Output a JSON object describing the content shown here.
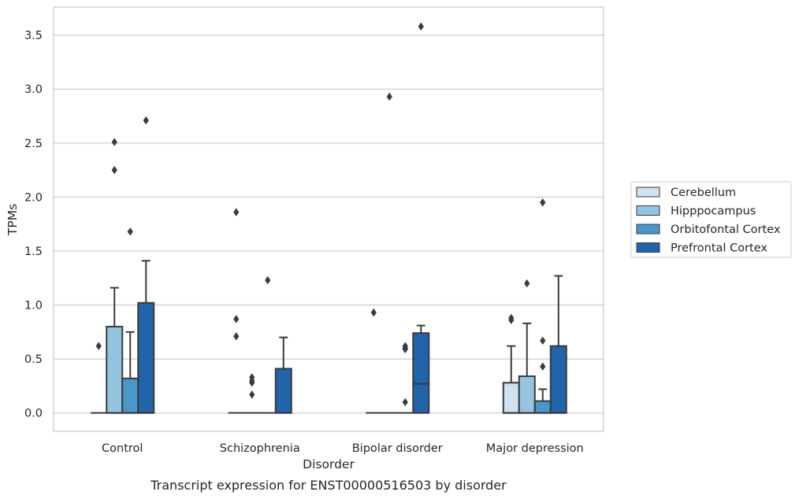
{
  "chart_data": {
    "type": "box",
    "caption": "Transcript expression for ENST00000516503 by disorder",
    "xlabel": "Disorder",
    "ylabel": "TPMs",
    "ylim": [
      -0.17,
      3.76
    ],
    "yticks": [
      "0.0",
      "0.5",
      "1.0",
      "1.5",
      "2.0",
      "2.5",
      "3.0",
      "3.5"
    ],
    "categories": [
      "Control",
      "Schizophrenia",
      "Bipolar disorder",
      "Major depression"
    ],
    "grid": true,
    "legend_position": "right",
    "series": [
      {
        "name": "Cerebellum",
        "color": "#d0e1f1",
        "boxes": [
          {
            "q1": 0,
            "median": 0,
            "q3": 0,
            "whisker_low": 0,
            "whisker_high": 0,
            "outliers": [
              0.62
            ]
          },
          {
            "q1": 0,
            "median": 0,
            "q3": 0,
            "whisker_low": 0,
            "whisker_high": 0,
            "outliers": [
              0.87,
              0.71,
              1.86
            ]
          },
          {
            "q1": 0,
            "median": 0,
            "q3": 0,
            "whisker_low": 0,
            "whisker_high": 0,
            "outliers": [
              0.93
            ]
          },
          {
            "q1": 0,
            "median": 0,
            "q3": 0.28,
            "whisker_low": 0,
            "whisker_high": 0.62,
            "outliers": [
              0.88,
              0.86
            ]
          }
        ]
      },
      {
        "name": "Hipppocampus",
        "color": "#94c4df",
        "boxes": [
          {
            "q1": 0,
            "median": 0,
            "q3": 0.8,
            "whisker_low": 0,
            "whisker_high": 1.16,
            "outliers": [
              2.25,
              2.51
            ]
          },
          {
            "q1": 0,
            "median": 0,
            "q3": 0,
            "whisker_low": 0,
            "whisker_high": 0,
            "outliers": [
              0.17,
              0.3,
              0.33,
              0.28
            ]
          },
          {
            "q1": 0,
            "median": 0,
            "q3": 0,
            "whisker_low": 0,
            "whisker_high": 0,
            "outliers": [
              2.93
            ]
          },
          {
            "q1": 0,
            "median": 0,
            "q3": 0.34,
            "whisker_low": 0,
            "whisker_high": 0.83,
            "outliers": [
              1.2
            ]
          }
        ]
      },
      {
        "name": "Orbitofontal Cortex",
        "color": "#4a98c9",
        "boxes": [
          {
            "q1": 0,
            "median": 0,
            "q3": 0.32,
            "whisker_low": 0,
            "whisker_high": 0.75,
            "outliers": [
              1.68
            ]
          },
          {
            "q1": 0,
            "median": 0,
            "q3": 0,
            "whisker_low": 0,
            "whisker_high": 0,
            "outliers": [
              1.23
            ]
          },
          {
            "q1": 0,
            "median": 0,
            "q3": 0,
            "whisker_low": 0,
            "whisker_high": 0,
            "outliers": [
              0.1,
              0.59,
              0.62,
              0.6
            ]
          },
          {
            "q1": 0,
            "median": 0,
            "q3": 0.11,
            "whisker_low": 0,
            "whisker_high": 0.22,
            "outliers": [
              0.43,
              0.67,
              1.95
            ]
          }
        ]
      },
      {
        "name": "Prefrontal Cortex",
        "color": "#2264ab",
        "boxes": [
          {
            "q1": 0,
            "median": 0,
            "q3": 1.02,
            "whisker_low": 0,
            "whisker_high": 1.41,
            "outliers": [
              2.71
            ]
          },
          {
            "q1": 0,
            "median": 0,
            "q3": 0.41,
            "whisker_low": 0,
            "whisker_high": 0.7,
            "outliers": []
          },
          {
            "q1": 0,
            "median": 0.27,
            "q3": 0.74,
            "whisker_low": 0,
            "whisker_high": 0.81,
            "outliers": [
              3.58
            ]
          },
          {
            "q1": 0,
            "median": 0,
            "q3": 0.62,
            "whisker_low": 0,
            "whisker_high": 1.27,
            "outliers": []
          }
        ]
      }
    ]
  }
}
